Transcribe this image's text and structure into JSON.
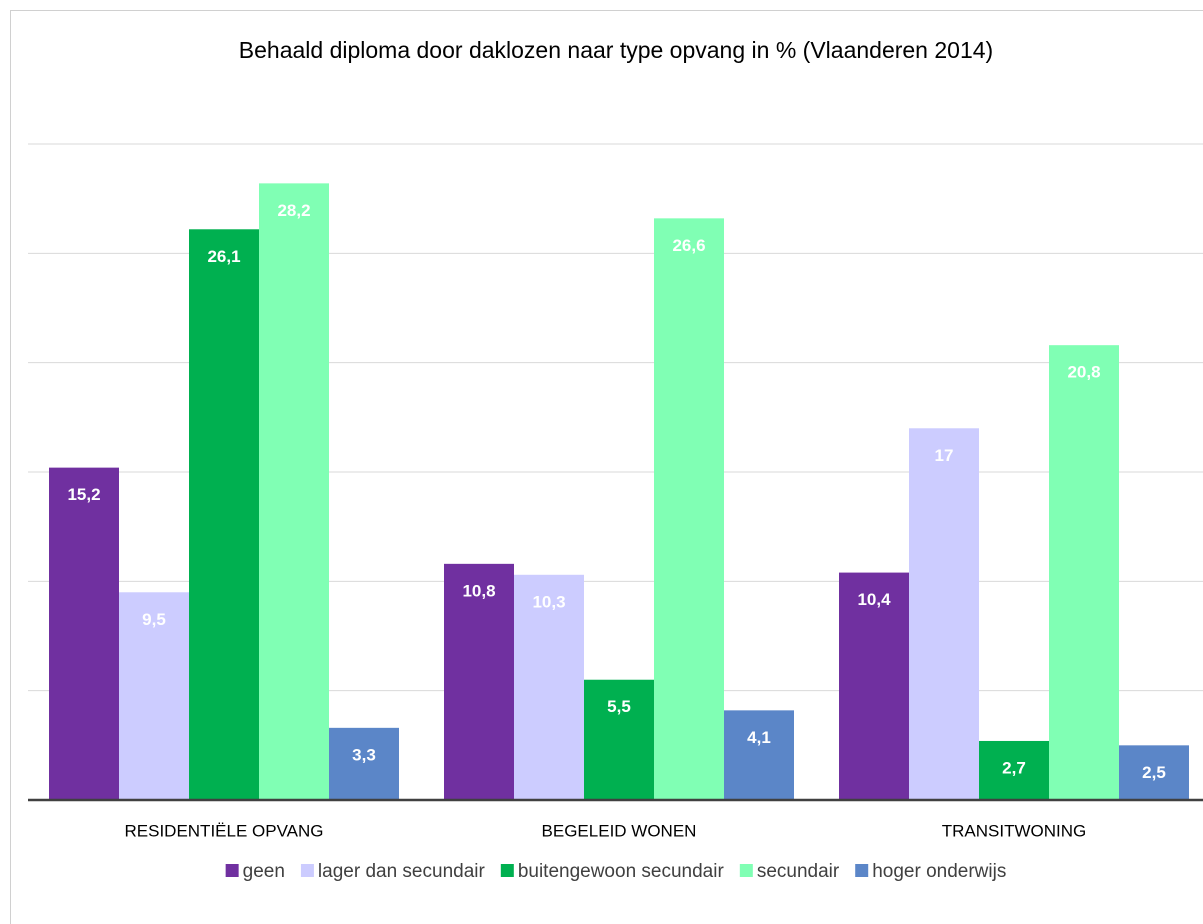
{
  "chart_data": {
    "type": "bar",
    "title": "Behaald diploma door daklozen naar type opvang in % (Vlaanderen 2014)",
    "categories": [
      "RESIDENTIËLE OPVANG",
      "BEGELEID WONEN",
      "TRANSITWONING"
    ],
    "series": [
      {
        "name": "geen",
        "color": "#7030a0",
        "values": [
          15.2,
          10.8,
          10.4
        ],
        "value_labels": [
          "15,2",
          "10,8",
          "10,4"
        ]
      },
      {
        "name": "lager dan secundair",
        "color": "#ccccff",
        "values": [
          9.5,
          10.3,
          17
        ],
        "value_labels": [
          "9,5",
          "10,3",
          "17"
        ]
      },
      {
        "name": "buitengewoon secundair",
        "color": "#00b050",
        "values": [
          26.1,
          5.5,
          2.7
        ],
        "value_labels": [
          "26,1",
          "5,5",
          "2,7"
        ]
      },
      {
        "name": "secundair",
        "color": "#80ffb4",
        "values": [
          28.2,
          26.6,
          20.8
        ],
        "value_labels": [
          "28,2",
          "26,6",
          "20,8"
        ]
      },
      {
        "name": "hoger onderwijs",
        "color": "#5b86c8",
        "values": [
          3.3,
          4.1,
          2.5
        ],
        "value_labels": [
          "3,3",
          "4,1",
          "2,5"
        ]
      }
    ],
    "ylim": [
      0,
      30
    ],
    "yticks": [
      0,
      5,
      10,
      15,
      20,
      25,
      30
    ],
    "grid": true,
    "legend": "bottom"
  }
}
